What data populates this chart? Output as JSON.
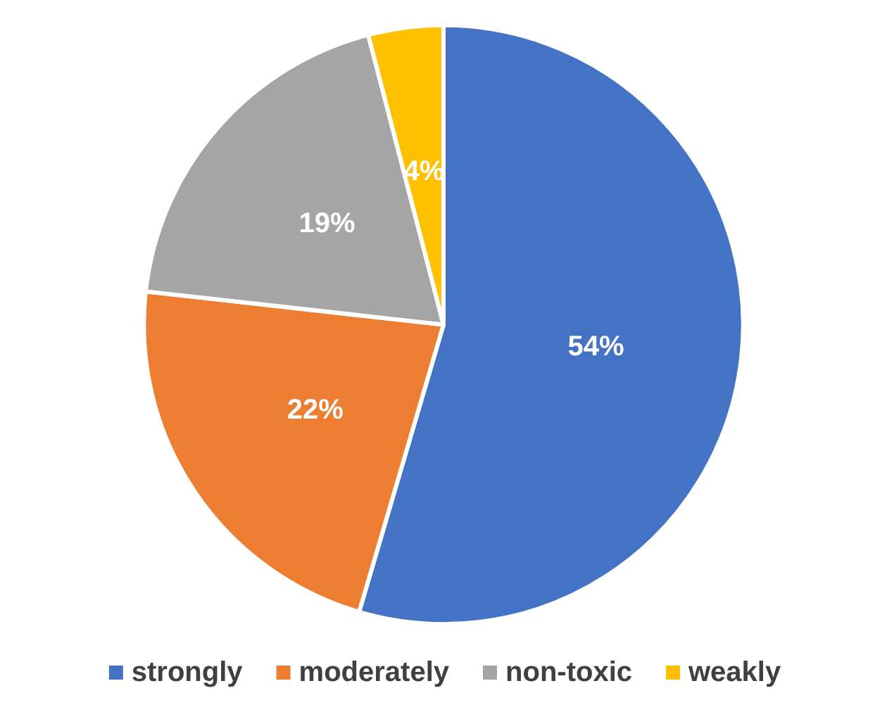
{
  "chart_data": {
    "type": "pie",
    "categories": [
      "strongly",
      "moderately",
      "non-toxic",
      "weakly"
    ],
    "values": [
      54,
      22,
      19,
      4
    ],
    "value_labels": [
      "54%",
      "22%",
      "19%",
      "4%"
    ],
    "colors": [
      "#4472c4",
      "#ed7d31",
      "#a5a5a5",
      "#ffc000"
    ],
    "legend": "bottom"
  }
}
